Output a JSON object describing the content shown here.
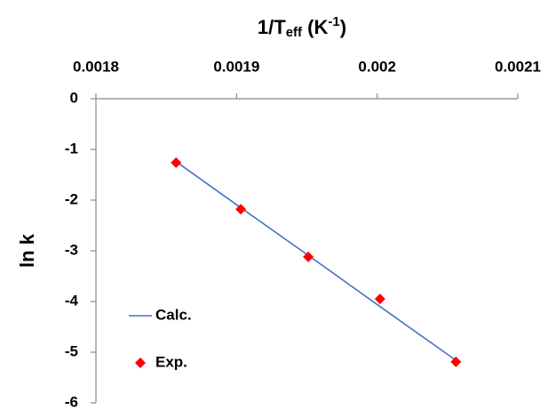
{
  "chart_data": {
    "type": "scatter",
    "xlabel": [
      "1/T",
      "eff",
      " (K",
      "-1",
      ")"
    ],
    "ylabel": "ln k",
    "x": [
      0.001857,
      0.001903,
      0.001951,
      0.002002,
      0.002056
    ],
    "series": [
      {
        "name": "Calc.",
        "kind": "line",
        "color": "#4472c4",
        "values": [
          -1.24,
          -2.15,
          -3.09,
          -4.1,
          -5.16
        ]
      },
      {
        "name": "Exp.",
        "kind": "marker",
        "color": "#ff0000",
        "values": [
          -1.26,
          -2.18,
          -3.12,
          -3.95,
          -5.19
        ]
      }
    ],
    "xlim": [
      0.0018,
      0.0021
    ],
    "xticks": [
      0.0018,
      0.0019,
      0.002,
      0.0021
    ],
    "ylim": [
      -6,
      0
    ],
    "yticks": [
      0,
      -1,
      -2,
      -3,
      -4,
      -5,
      -6
    ],
    "x_axis_position": "top",
    "legend": "lower left",
    "grid": false
  }
}
